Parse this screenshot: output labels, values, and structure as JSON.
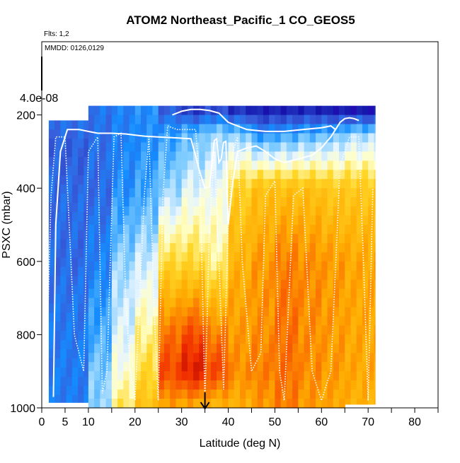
{
  "chart_data": {
    "type": "heatmap",
    "title": "ATOM2 Northeast_Pacific_1 CO_GEOS5",
    "flights_note": "Flts: 1,2",
    "dates_note": "MMDD: 0126,0129",
    "xlabel": "Latitude (deg N)",
    "ylabel": "PSXC (mbar)",
    "xlim": [
      0,
      85
    ],
    "ylim": [
      1000,
      0
    ],
    "x_ticks": [
      0,
      5,
      10,
      20,
      30,
      40,
      50,
      60,
      70,
      80
    ],
    "y_ticks": [
      1000,
      800,
      600,
      400,
      200
    ],
    "colorbar_label": "4.0e-08",
    "marker_arrow_latitude": 35,
    "columns": [
      {
        "lat0": 1.5,
        "lat1": 10,
        "top": 215,
        "bottom": 985,
        "levels": [
          215,
          300,
          420,
          600,
          720,
          850,
          985
        ],
        "values": [
          0.25,
          0.22,
          0.24,
          0.24,
          0.26,
          0.27,
          0.27
        ]
      },
      {
        "lat0": 10,
        "lat1": 15,
        "top": 175,
        "bottom": 1000,
        "levels": [
          175,
          250,
          400,
          600,
          800,
          900,
          1000
        ],
        "values": [
          0.26,
          0.25,
          0.24,
          0.28,
          0.34,
          0.38,
          0.4
        ]
      },
      {
        "lat0": 15,
        "lat1": 20,
        "top": 175,
        "bottom": 1000,
        "levels": [
          175,
          250,
          400,
          600,
          800,
          900,
          1000
        ],
        "values": [
          0.28,
          0.28,
          0.3,
          0.4,
          0.46,
          0.5,
          0.58
        ]
      },
      {
        "lat0": 20,
        "lat1": 25,
        "top": 175,
        "bottom": 1000,
        "levels": [
          175,
          250,
          400,
          600,
          800,
          900,
          1000
        ],
        "values": [
          0.3,
          0.3,
          0.33,
          0.44,
          0.55,
          0.6,
          0.66
        ]
      },
      {
        "lat0": 25,
        "lat1": 30,
        "top": 175,
        "bottom": 1000,
        "levels": [
          175,
          250,
          400,
          600,
          800,
          900,
          1000
        ],
        "values": [
          0.2,
          0.32,
          0.4,
          0.6,
          0.8,
          0.86,
          0.72
        ]
      },
      {
        "lat0": 30,
        "lat1": 35,
        "top": 175,
        "bottom": 1000,
        "levels": [
          175,
          250,
          400,
          600,
          800,
          900,
          1000
        ],
        "values": [
          0.12,
          0.36,
          0.46,
          0.6,
          0.85,
          0.93,
          0.7
        ]
      },
      {
        "lat0": 35,
        "lat1": 40,
        "top": 175,
        "bottom": 1000,
        "levels": [
          175,
          250,
          400,
          600,
          800,
          900,
          1000
        ],
        "values": [
          0.15,
          0.4,
          0.48,
          0.55,
          0.78,
          0.86,
          0.68
        ]
      },
      {
        "lat0": 40,
        "lat1": 45,
        "top": 175,
        "bottom": 1000,
        "levels": [
          175,
          250,
          400,
          600,
          800,
          900,
          1000
        ],
        "values": [
          0.1,
          0.38,
          0.62,
          0.7,
          0.74,
          0.76,
          0.7
        ]
      },
      {
        "lat0": 45,
        "lat1": 50,
        "top": 175,
        "bottom": 1000,
        "levels": [
          175,
          250,
          400,
          600,
          800,
          900,
          1000
        ],
        "values": [
          0.08,
          0.3,
          0.66,
          0.74,
          0.76,
          0.78,
          0.74
        ]
      },
      {
        "lat0": 50,
        "lat1": 55,
        "top": 175,
        "bottom": 1000,
        "levels": [
          175,
          250,
          400,
          600,
          800,
          900,
          1000
        ],
        "values": [
          0.08,
          0.32,
          0.66,
          0.78,
          0.8,
          0.8,
          0.78
        ]
      },
      {
        "lat0": 55,
        "lat1": 60,
        "top": 175,
        "bottom": 1000,
        "levels": [
          175,
          250,
          400,
          600,
          800,
          900,
          1000
        ],
        "values": [
          0.09,
          0.34,
          0.66,
          0.76,
          0.76,
          0.76,
          0.74
        ]
      },
      {
        "lat0": 60,
        "lat1": 65,
        "top": 175,
        "bottom": 1000,
        "levels": [
          175,
          250,
          400,
          600,
          800,
          900,
          1000
        ],
        "values": [
          0.06,
          0.36,
          0.64,
          0.74,
          0.74,
          0.74,
          0.72
        ]
      },
      {
        "lat0": 65,
        "lat1": 71.5,
        "top": 175,
        "bottom": 990,
        "levels": [
          175,
          250,
          400,
          600,
          800,
          900,
          990
        ],
        "values": [
          0.04,
          0.4,
          0.64,
          0.72,
          0.72,
          0.72,
          0.7
        ]
      }
    ],
    "flight_tracks": [
      {
        "style": "solid",
        "lat": [
          2.5,
          3,
          4,
          5.5,
          8,
          10,
          12,
          15,
          18,
          20,
          22,
          25,
          28,
          32,
          34,
          35,
          36,
          37,
          37.5,
          38,
          38.5,
          39,
          39.5,
          40,
          41,
          42,
          44,
          46,
          48,
          50,
          52,
          55,
          58,
          60,
          62,
          63,
          64,
          65,
          66,
          67,
          68
        ],
        "p": [
          970,
          500,
          300,
          240,
          240,
          245,
          250,
          250,
          252,
          255,
          258,
          260,
          262,
          265,
          360,
          400,
          395,
          270,
          265,
          330,
          320,
          275,
          272,
          500,
          380,
          300,
          290,
          285,
          300,
          320,
          330,
          320,
          310,
          290,
          260,
          240,
          220,
          210,
          208,
          210,
          215
        ]
      },
      {
        "style": "solid",
        "lat": [
          28,
          30,
          32,
          34,
          36,
          38,
          40,
          44,
          48,
          52,
          56,
          60,
          62,
          63
        ],
        "p": [
          200,
          190,
          185,
          185,
          188,
          195,
          220,
          240,
          245,
          245,
          240,
          235,
          230,
          240
        ]
      },
      {
        "style": "dotted",
        "lat": [
          1,
          2,
          3,
          5,
          7,
          9,
          10,
          12,
          13,
          14,
          15.5,
          17,
          18,
          19,
          20,
          21,
          22,
          23,
          24,
          25,
          26,
          27,
          29,
          31,
          33,
          34,
          35,
          36,
          37,
          38,
          39,
          40,
          41,
          42,
          43,
          45,
          47,
          48,
          50,
          51,
          52,
          54,
          56,
          58,
          60,
          62,
          64,
          66,
          68,
          69,
          70,
          71
        ],
        "p": [
          900,
          420,
          260,
          260,
          800,
          900,
          300,
          260,
          960,
          900,
          260,
          250,
          700,
          900,
          980,
          700,
          420,
          260,
          700,
          980,
          420,
          230,
          240,
          240,
          240,
          400,
          980,
          500,
          300,
          600,
          950,
          500,
          300,
          260,
          600,
          900,
          850,
          420,
          380,
          900,
          980,
          420,
          400,
          900,
          980,
          900,
          340,
          260,
          260,
          600,
          980,
          400
        ]
      }
    ]
  }
}
